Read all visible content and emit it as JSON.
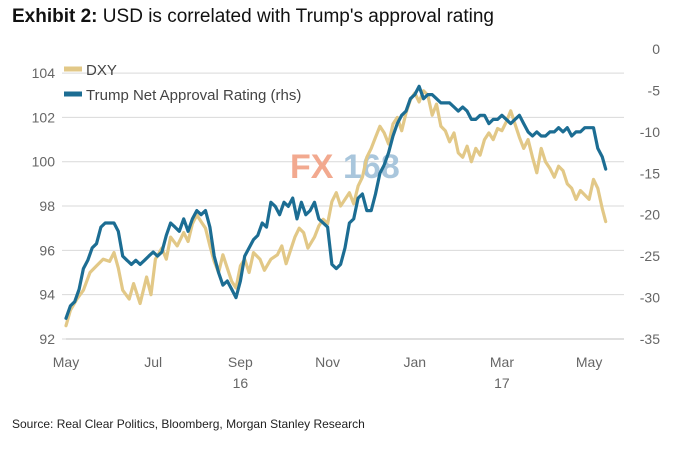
{
  "title": {
    "lead": "Exhibit 2:",
    "text": "USD is correlated with Trump's approval rating"
  },
  "source": "Source: Real Clear Politics, Bloomberg, Morgan Stanley Research",
  "watermark": {
    "part1": "FX",
    "part2": "168"
  },
  "colors": {
    "dxy": "#e2c887",
    "approval": "#1c6d93",
    "grid": "#d9d9d9",
    "wm1": "#f2a98f",
    "wm2": "#a9c6dc"
  },
  "chart_data": {
    "type": "line",
    "title": "USD is correlated with Trump's approval rating",
    "x_tick_labels": [
      "May",
      "Jul",
      "Sep",
      "Nov",
      "Jan",
      "Mar",
      "May"
    ],
    "x_year_labels": [
      {
        "label": "16",
        "under": "Sep"
      },
      {
        "label": "17",
        "under": "Mar"
      }
    ],
    "x_range_months": [
      0,
      12.8
    ],
    "y_left": {
      "ticks": [
        92,
        94,
        96,
        98,
        100,
        102,
        104
      ],
      "range": [
        92,
        104.5
      ]
    },
    "y_right": {
      "ticks": [
        0,
        -5,
        -10,
        -15,
        -20,
        -25,
        -30,
        -35
      ],
      "range": [
        -35,
        0
      ]
    },
    "legend": {
      "position": "top-left",
      "entries": [
        "DXY",
        "Trump Net Approval Rating (rhs)"
      ]
    },
    "series": [
      {
        "name": "DXY",
        "axis": "left",
        "points": [
          [
            0.0,
            92.6
          ],
          [
            0.1,
            93.3
          ],
          [
            0.25,
            93.8
          ],
          [
            0.4,
            94.2
          ],
          [
            0.55,
            95.0
          ],
          [
            0.7,
            95.3
          ],
          [
            0.85,
            95.6
          ],
          [
            1.0,
            95.5
          ],
          [
            1.1,
            95.9
          ],
          [
            1.2,
            95.2
          ],
          [
            1.3,
            94.2
          ],
          [
            1.45,
            93.8
          ],
          [
            1.55,
            94.5
          ],
          [
            1.7,
            93.6
          ],
          [
            1.85,
            94.8
          ],
          [
            1.95,
            94.0
          ],
          [
            2.05,
            95.6
          ],
          [
            2.2,
            96.1
          ],
          [
            2.3,
            95.6
          ],
          [
            2.4,
            96.6
          ],
          [
            2.55,
            96.2
          ],
          [
            2.7,
            96.8
          ],
          [
            2.8,
            96.4
          ],
          [
            2.9,
            97.2
          ],
          [
            3.0,
            97.6
          ],
          [
            3.1,
            97.3
          ],
          [
            3.2,
            97.0
          ],
          [
            3.3,
            96.2
          ],
          [
            3.4,
            95.5
          ],
          [
            3.5,
            95.0
          ],
          [
            3.6,
            95.8
          ],
          [
            3.7,
            95.2
          ],
          [
            3.8,
            94.6
          ],
          [
            3.9,
            94.3
          ],
          [
            4.0,
            95.3
          ],
          [
            4.1,
            95.6
          ],
          [
            4.2,
            95.0
          ],
          [
            4.3,
            95.9
          ],
          [
            4.45,
            95.6
          ],
          [
            4.55,
            95.1
          ],
          [
            4.7,
            95.6
          ],
          [
            4.85,
            95.8
          ],
          [
            4.95,
            96.2
          ],
          [
            5.05,
            95.4
          ],
          [
            5.15,
            96.0
          ],
          [
            5.25,
            96.6
          ],
          [
            5.35,
            97.0
          ],
          [
            5.45,
            96.8
          ],
          [
            5.55,
            96.1
          ],
          [
            5.7,
            96.6
          ],
          [
            5.8,
            97.1
          ],
          [
            5.9,
            97.4
          ],
          [
            6.0,
            97.2
          ],
          [
            6.1,
            98.2
          ],
          [
            6.2,
            98.6
          ],
          [
            6.3,
            98.0
          ],
          [
            6.4,
            98.3
          ],
          [
            6.5,
            98.6
          ],
          [
            6.6,
            98.1
          ],
          [
            6.7,
            98.9
          ],
          [
            6.8,
            99.3
          ],
          [
            6.9,
            100.2
          ],
          [
            7.0,
            100.6
          ],
          [
            7.1,
            101.1
          ],
          [
            7.2,
            101.6
          ],
          [
            7.3,
            101.3
          ],
          [
            7.4,
            100.8
          ],
          [
            7.5,
            101.7
          ],
          [
            7.6,
            102.0
          ],
          [
            7.7,
            101.4
          ],
          [
            7.8,
            102.2
          ],
          [
            7.9,
            102.8
          ],
          [
            8.0,
            103.1
          ],
          [
            8.1,
            102.7
          ],
          [
            8.2,
            103.2
          ],
          [
            8.3,
            103.0
          ],
          [
            8.4,
            102.1
          ],
          [
            8.5,
            102.6
          ],
          [
            8.6,
            101.6
          ],
          [
            8.7,
            101.4
          ],
          [
            8.8,
            100.9
          ],
          [
            8.9,
            101.3
          ],
          [
            9.0,
            100.4
          ],
          [
            9.1,
            100.2
          ],
          [
            9.2,
            100.7
          ],
          [
            9.3,
            100.0
          ],
          [
            9.4,
            100.6
          ],
          [
            9.5,
            100.3
          ],
          [
            9.6,
            101.0
          ],
          [
            9.7,
            101.3
          ],
          [
            9.8,
            101.0
          ],
          [
            9.9,
            101.5
          ],
          [
            10.0,
            101.4
          ],
          [
            10.1,
            101.8
          ],
          [
            10.2,
            102.3
          ],
          [
            10.3,
            101.7
          ],
          [
            10.4,
            101.1
          ],
          [
            10.5,
            100.6
          ],
          [
            10.6,
            101.0
          ],
          [
            10.7,
            100.2
          ],
          [
            10.8,
            99.5
          ],
          [
            10.9,
            100.6
          ],
          [
            11.0,
            100.0
          ],
          [
            11.1,
            99.7
          ],
          [
            11.2,
            99.3
          ],
          [
            11.3,
            99.8
          ],
          [
            11.4,
            99.6
          ],
          [
            11.5,
            99.0
          ],
          [
            11.6,
            98.8
          ],
          [
            11.7,
            98.3
          ],
          [
            11.8,
            98.7
          ],
          [
            11.9,
            98.5
          ],
          [
            12.0,
            98.3
          ],
          [
            12.1,
            99.2
          ],
          [
            12.2,
            98.8
          ],
          [
            12.3,
            97.9
          ],
          [
            12.38,
            97.3
          ]
        ]
      },
      {
        "name": "Trump Net Approval Rating (rhs)",
        "axis": "right",
        "points": [
          [
            0.0,
            -32.5
          ],
          [
            0.1,
            -31.0
          ],
          [
            0.2,
            -30.5
          ],
          [
            0.3,
            -29.0
          ],
          [
            0.4,
            -26.5
          ],
          [
            0.5,
            -25.5
          ],
          [
            0.6,
            -24.0
          ],
          [
            0.7,
            -23.5
          ],
          [
            0.8,
            -21.5
          ],
          [
            0.9,
            -21.0
          ],
          [
            1.0,
            -21.0
          ],
          [
            1.1,
            -21.0
          ],
          [
            1.2,
            -22.0
          ],
          [
            1.3,
            -25.0
          ],
          [
            1.4,
            -25.5
          ],
          [
            1.5,
            -26.0
          ],
          [
            1.6,
            -25.5
          ],
          [
            1.7,
            -26.0
          ],
          [
            1.8,
            -25.5
          ],
          [
            1.9,
            -25.0
          ],
          [
            2.0,
            -24.5
          ],
          [
            2.1,
            -25.0
          ],
          [
            2.2,
            -24.5
          ],
          [
            2.3,
            -22.5
          ],
          [
            2.4,
            -21.0
          ],
          [
            2.5,
            -21.5
          ],
          [
            2.6,
            -22.0
          ],
          [
            2.7,
            -20.5
          ],
          [
            2.8,
            -22.0
          ],
          [
            2.9,
            -20.5
          ],
          [
            3.0,
            -19.5
          ],
          [
            3.1,
            -20.0
          ],
          [
            3.2,
            -19.5
          ],
          [
            3.3,
            -21.5
          ],
          [
            3.4,
            -25.0
          ],
          [
            3.5,
            -27.0
          ],
          [
            3.6,
            -28.5
          ],
          [
            3.7,
            -28.0
          ],
          [
            3.8,
            -29.0
          ],
          [
            3.9,
            -30.0
          ],
          [
            4.0,
            -28.0
          ],
          [
            4.1,
            -25.0
          ],
          [
            4.2,
            -24.0
          ],
          [
            4.3,
            -23.0
          ],
          [
            4.4,
            -22.5
          ],
          [
            4.5,
            -21.0
          ],
          [
            4.6,
            -21.5
          ],
          [
            4.7,
            -18.5
          ],
          [
            4.8,
            -19.0
          ],
          [
            4.9,
            -20.0
          ],
          [
            5.0,
            -18.5
          ],
          [
            5.1,
            -19.0
          ],
          [
            5.2,
            -18.0
          ],
          [
            5.3,
            -20.5
          ],
          [
            5.4,
            -18.5
          ],
          [
            5.5,
            -20.0
          ],
          [
            5.6,
            -19.5
          ],
          [
            5.7,
            -18.5
          ],
          [
            5.8,
            -20.5
          ],
          [
            5.9,
            -21.0
          ],
          [
            6.0,
            -21.5
          ],
          [
            6.1,
            -26.0
          ],
          [
            6.2,
            -26.5
          ],
          [
            6.3,
            -26.0
          ],
          [
            6.4,
            -24.0
          ],
          [
            6.5,
            -21.0
          ],
          [
            6.6,
            -20.5
          ],
          [
            6.7,
            -18.0
          ],
          [
            6.8,
            -17.5
          ],
          [
            6.9,
            -19.5
          ],
          [
            7.0,
            -19.5
          ],
          [
            7.1,
            -17.5
          ],
          [
            7.2,
            -15.0
          ],
          [
            7.3,
            -14.0
          ],
          [
            7.4,
            -12.5
          ],
          [
            7.5,
            -10.5
          ],
          [
            7.6,
            -9.0
          ],
          [
            7.7,
            -8.0
          ],
          [
            7.8,
            -7.5
          ],
          [
            7.9,
            -6.0
          ],
          [
            8.0,
            -5.5
          ],
          [
            8.1,
            -4.5
          ],
          [
            8.2,
            -6.0
          ],
          [
            8.3,
            -5.5
          ],
          [
            8.4,
            -5.5
          ],
          [
            8.5,
            -6.0
          ],
          [
            8.6,
            -6.5
          ],
          [
            8.7,
            -6.5
          ],
          [
            8.8,
            -6.5
          ],
          [
            8.9,
            -7.0
          ],
          [
            9.0,
            -7.5
          ],
          [
            9.1,
            -7.0
          ],
          [
            9.2,
            -7.5
          ],
          [
            9.3,
            -8.5
          ],
          [
            9.4,
            -8.5
          ],
          [
            9.5,
            -8.0
          ],
          [
            9.6,
            -8.0
          ],
          [
            9.7,
            -9.0
          ],
          [
            9.8,
            -8.5
          ],
          [
            9.9,
            -8.5
          ],
          [
            10.0,
            -8.0
          ],
          [
            10.1,
            -8.5
          ],
          [
            10.2,
            -9.0
          ],
          [
            10.3,
            -8.5
          ],
          [
            10.4,
            -8.0
          ],
          [
            10.5,
            -9.0
          ],
          [
            10.6,
            -10.0
          ],
          [
            10.7,
            -10.5
          ],
          [
            10.8,
            -10.0
          ],
          [
            10.9,
            -10.5
          ],
          [
            11.0,
            -10.5
          ],
          [
            11.1,
            -10.0
          ],
          [
            11.2,
            -10.0
          ],
          [
            11.3,
            -9.5
          ],
          [
            11.4,
            -10.0
          ],
          [
            11.5,
            -9.5
          ],
          [
            11.6,
            -10.5
          ],
          [
            11.7,
            -10.0
          ],
          [
            11.8,
            -10.0
          ],
          [
            11.9,
            -9.5
          ],
          [
            12.0,
            -9.5
          ],
          [
            12.1,
            -9.5
          ],
          [
            12.2,
            -12.0
          ],
          [
            12.3,
            -13.0
          ],
          [
            12.38,
            -14.5
          ]
        ]
      }
    ]
  }
}
